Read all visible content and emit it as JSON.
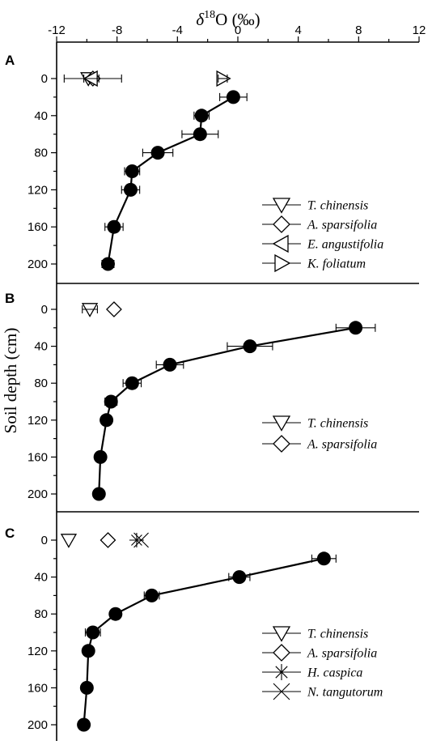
{
  "chart_data": {
    "type": "scatter",
    "x_title_delta": "δ",
    "x_title_sup": "18",
    "x_title_rest": "O (‰)",
    "ylabel": "Soil depth (cm)",
    "xlim": [
      -12,
      12
    ],
    "x_ticks": [
      -12,
      -8,
      -4,
      0,
      4,
      8,
      12
    ],
    "x_tick_labels": [
      "-12",
      "-8",
      "-4",
      "0",
      "4",
      "8",
      "12"
    ],
    "ylim": [
      0,
      220
    ],
    "y_ticks": [
      0,
      40,
      80,
      120,
      160,
      200
    ],
    "y_tick_labels": [
      "0",
      "40",
      "80",
      "120",
      "160",
      "200"
    ],
    "y_reversed": true,
    "x_axis_position": "top",
    "grid": false,
    "legend_position": "bottom-right",
    "panels": [
      {
        "label": "A",
        "soil": {
          "depth": [
            20,
            40,
            60,
            80,
            100,
            120,
            160,
            200
          ],
          "d18O": [
            -0.3,
            -2.4,
            -2.5,
            -5.3,
            -7.0,
            -7.1,
            -8.2,
            -8.6
          ],
          "sd": [
            0.9,
            0.5,
            1.2,
            1.0,
            0.5,
            0.6,
            0.6,
            0.4
          ]
        },
        "plants": [
          {
            "name": "T. chinensis",
            "marker": "triangle-down",
            "d18O": -9.9,
            "depth": 0,
            "sd": 0
          },
          {
            "name": "A. sparsifolia",
            "marker": "diamond",
            "d18O": -9.6,
            "depth": 0,
            "sd": 1.9
          },
          {
            "name": "E. angustifolia",
            "marker": "triangle-left",
            "d18O": -9.7,
            "depth": 0,
            "sd": 0.5
          },
          {
            "name": "K. foliatum",
            "marker": "triangle-right",
            "d18O": -1.0,
            "depth": 0,
            "sd": 0.3
          }
        ]
      },
      {
        "label": "B",
        "soil": {
          "depth": [
            20,
            40,
            60,
            80,
            100,
            120,
            160,
            200
          ],
          "d18O": [
            7.8,
            0.8,
            -4.5,
            -7.0,
            -8.4,
            -8.7,
            -9.1,
            -9.2
          ],
          "sd": [
            1.3,
            1.5,
            0.9,
            0.6,
            0.4,
            0,
            0,
            0
          ]
        },
        "plants": [
          {
            "name": "T. chinensis",
            "marker": "triangle-down",
            "d18O": -9.8,
            "depth": 0,
            "sd": 0.5
          },
          {
            "name": "A. sparsifolia",
            "marker": "diamond",
            "d18O": -8.2,
            "depth": 0,
            "sd": 0
          }
        ]
      },
      {
        "label": "C",
        "soil": {
          "depth": [
            20,
            40,
            60,
            80,
            100,
            120,
            160,
            200
          ],
          "d18O": [
            5.7,
            0.1,
            -5.7,
            -8.1,
            -9.6,
            -9.9,
            -10.0,
            -10.2
          ],
          "sd": [
            0.8,
            0.7,
            0.5,
            0,
            0.5,
            0,
            0,
            0
          ]
        },
        "plants": [
          {
            "name": "T. chinensis",
            "marker": "triangle-down",
            "d18O": -11.2,
            "depth": 0,
            "sd": 0
          },
          {
            "name": "A. sparsifolia",
            "marker": "diamond",
            "d18O": -8.6,
            "depth": 0,
            "sd": 0
          },
          {
            "name": "H. caspica",
            "marker": "asterisk",
            "d18O": -6.7,
            "depth": 0,
            "sd": 0
          },
          {
            "name": "N. tangutorum",
            "marker": "cross",
            "d18O": -6.4,
            "depth": 0,
            "sd": 0
          }
        ]
      }
    ]
  }
}
